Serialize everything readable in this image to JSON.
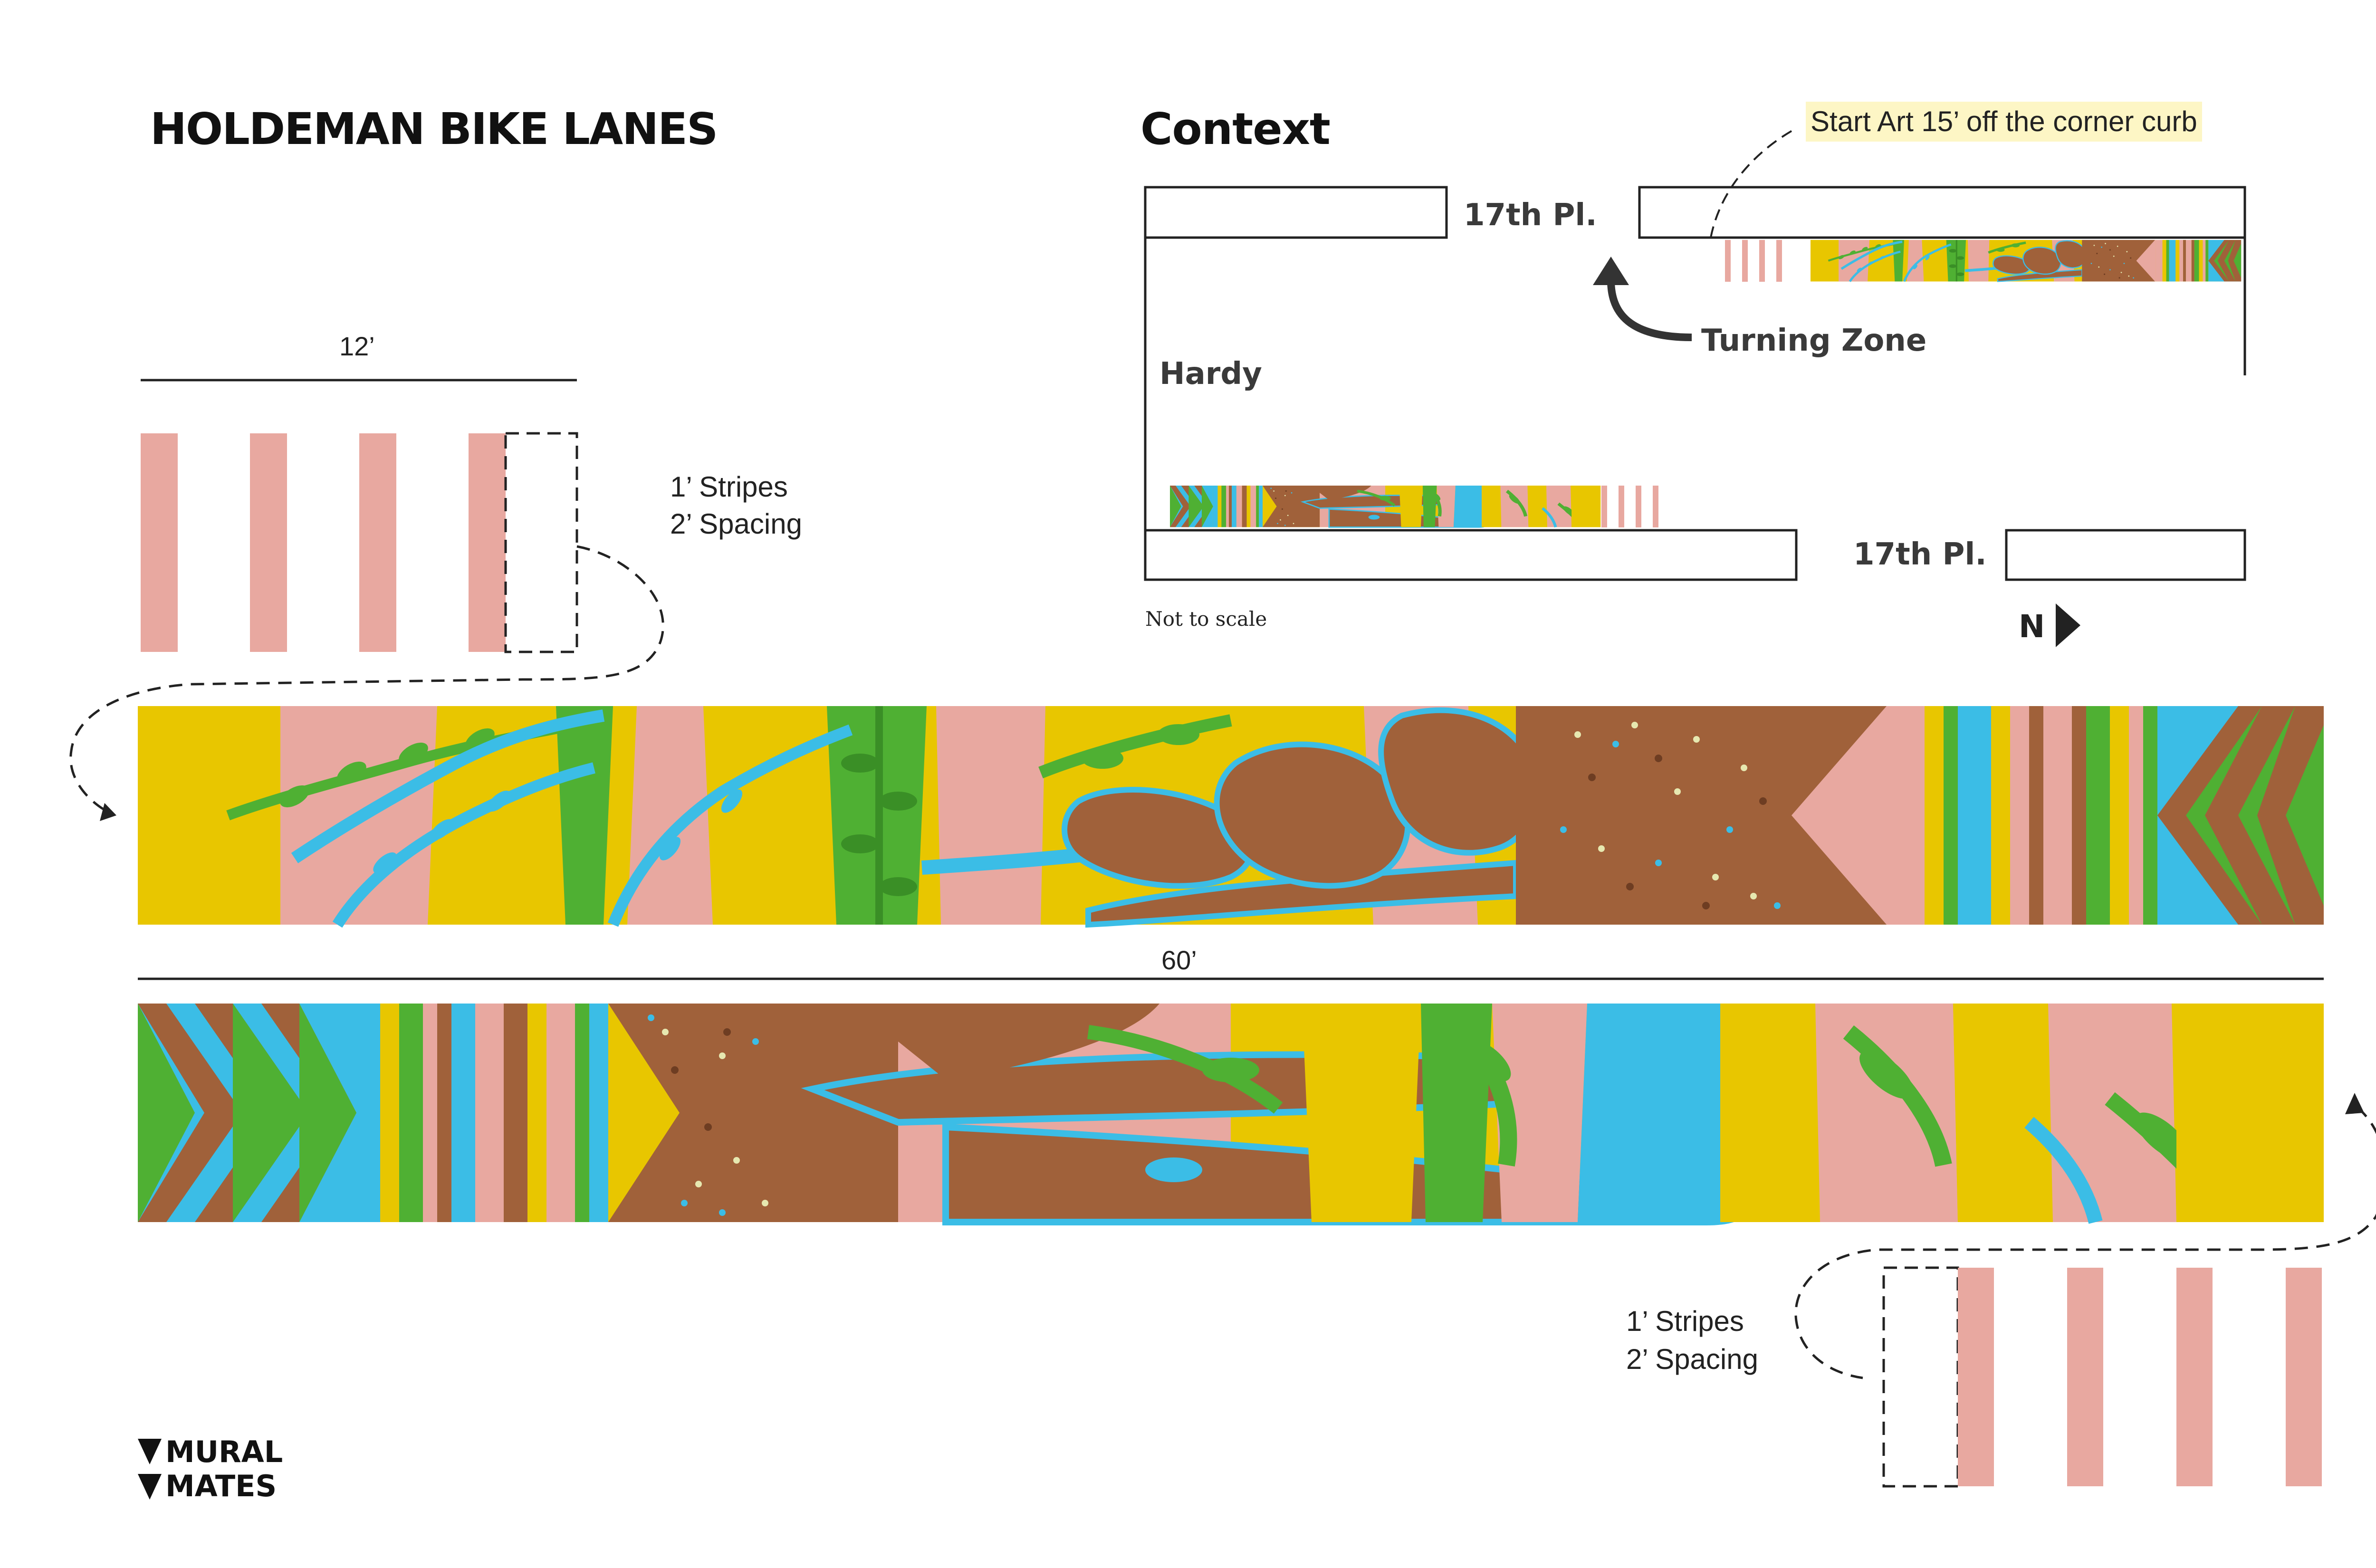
{
  "title": "HOLDEMAN BIKE LANES",
  "context": {
    "heading": "Context",
    "start_note": "Start Art 15’ off the corner curb",
    "street_top": "17th Pl.",
    "street_bottom": "17th Pl.",
    "street_left": "Hardy",
    "turning_zone": "Turning Zone",
    "not_to_scale": "Not to scale",
    "north": "N"
  },
  "dimensions": {
    "top_width": "12’",
    "mural_length": "60’"
  },
  "stripe_notes": {
    "top": [
      "1’ Stripes",
      "2’ Spacing"
    ],
    "bottom": [
      "1’ Stripes",
      "2’ Spacing"
    ]
  },
  "logo": {
    "line1": "MURAL",
    "line2": "MATES"
  },
  "palette": {
    "yellow": "#e8c600",
    "pink": "#e8a8a0",
    "blue": "#3bbde6",
    "green": "#4fb033",
    "brown": "#a0613a",
    "cream": "#e6e8b0",
    "ink": "#222222"
  }
}
